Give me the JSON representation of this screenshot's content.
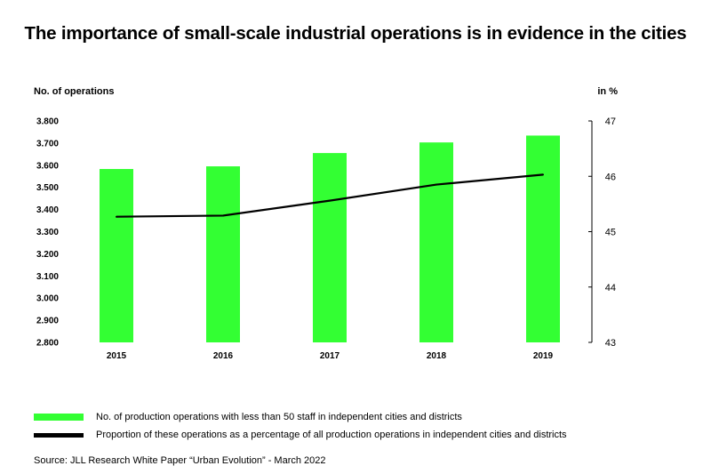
{
  "title": "The importance of small-scale industrial operations is in evidence in the cities",
  "colors": {
    "bar": "#33ff33",
    "line": "#000000",
    "axis": "#000000"
  },
  "chart_data": {
    "type": "bar+line",
    "categories": [
      "2015",
      "2016",
      "2017",
      "2018",
      "2019"
    ],
    "series": [
      {
        "name": "No. of production operations with less than 50 staff in independent cities and districts",
        "type": "bar",
        "axis": "left",
        "values": [
          3583,
          3595,
          3655,
          3703,
          3734
        ]
      },
      {
        "name": "Proportion of these operations as a percentage of all production operations in independent cities and districts",
        "type": "line",
        "axis": "right",
        "values": [
          45.27,
          45.29,
          45.56,
          45.85,
          46.03
        ]
      }
    ],
    "left_axis": {
      "label": "No. of operations",
      "ylim": [
        2800,
        3800
      ],
      "ticks": [
        3800,
        3700,
        3600,
        3500,
        3400,
        3300,
        3200,
        3100,
        3000,
        2900,
        2800
      ],
      "tick_labels": [
        "3.800",
        "3.700",
        "3.600",
        "3.500",
        "3.400",
        "3.300",
        "3.200",
        "3.100",
        "3.000",
        "2.900",
        "2.800"
      ]
    },
    "right_axis": {
      "label": "in %",
      "ylim": [
        43,
        47
      ],
      "ticks": [
        47,
        46,
        45,
        44,
        43
      ],
      "tick_labels": [
        "47",
        "46",
        "45",
        "44",
        "43"
      ]
    },
    "grid": false
  },
  "legend": {
    "items": [
      {
        "label": "No. of production operations with less than 50 staff in independent cities and districts",
        "color": "#33ff33"
      },
      {
        "label": "Proportion of these operations as a percentage of all production operations in independent cities and districts",
        "color": "#000000"
      }
    ]
  },
  "source": "Source: JLL Research White Paper “Urban Evolution” - March 2022"
}
